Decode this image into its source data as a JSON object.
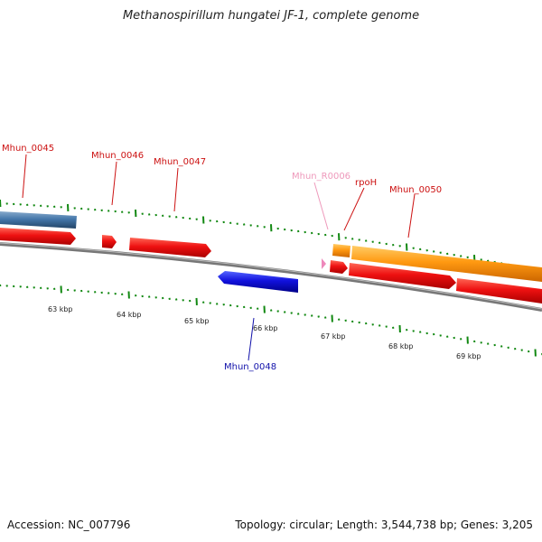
{
  "title": "Methanospirillum hungatei JF-1, complete genome",
  "accession": "Accession: NC_007796",
  "summary": "Topology: circular; Length: 3,544,738 bp; Genes: 3,205",
  "colors": {
    "cds_forward": "#ee1111",
    "cds_reverse": "#1111dd",
    "gene_forward": "#ff9911",
    "gene_other": "#4477aa",
    "rrna": "#ee88bb",
    "ticks": "#118811",
    "backbone": "#888888"
  },
  "scale_labels": [
    "63 kbp",
    "64 kbp",
    "65 kbp",
    "66 kbp",
    "67 kbp",
    "68 kbp",
    "69 kbp"
  ],
  "gene_labels": [
    {
      "id": "Mhun_0045",
      "color": "#cc1111"
    },
    {
      "id": "Mhun_0046",
      "color": "#cc1111"
    },
    {
      "id": "Mhun_0047",
      "color": "#cc1111"
    },
    {
      "id": "Mhun_R0006",
      "color": "#ee99bb"
    },
    {
      "id": "rpoH",
      "color": "#cc1111"
    },
    {
      "id": "Mhun_0050",
      "color": "#cc1111"
    },
    {
      "id": "Mhun_0048",
      "color": "#1111aa"
    }
  ]
}
